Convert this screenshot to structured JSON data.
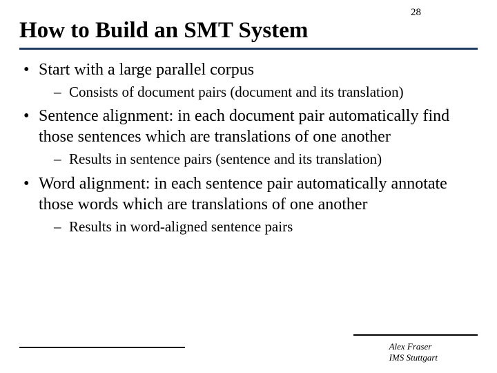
{
  "page_number": "28",
  "title": "How to Build an SMT System",
  "bullets": [
    {
      "text": "Start with a large parallel corpus",
      "sub": [
        "Consists of document pairs (document and its translation)"
      ]
    },
    {
      "text": "Sentence alignment: in each document pair automatically find those sentences which are translations of one another",
      "sub": [
        "Results in sentence pairs (sentence and its translation)"
      ]
    },
    {
      "text": "Word alignment: in each sentence pair automatically annotate those words which are translations of one another",
      "sub": [
        "Results in word-aligned sentence pairs"
      ]
    }
  ],
  "footer": {
    "author": "Alex Fraser",
    "affiliation": "IMS Stuttgart"
  },
  "colors": {
    "rule": "#1f3a5f",
    "text": "#000000",
    "background": "#ffffff"
  }
}
